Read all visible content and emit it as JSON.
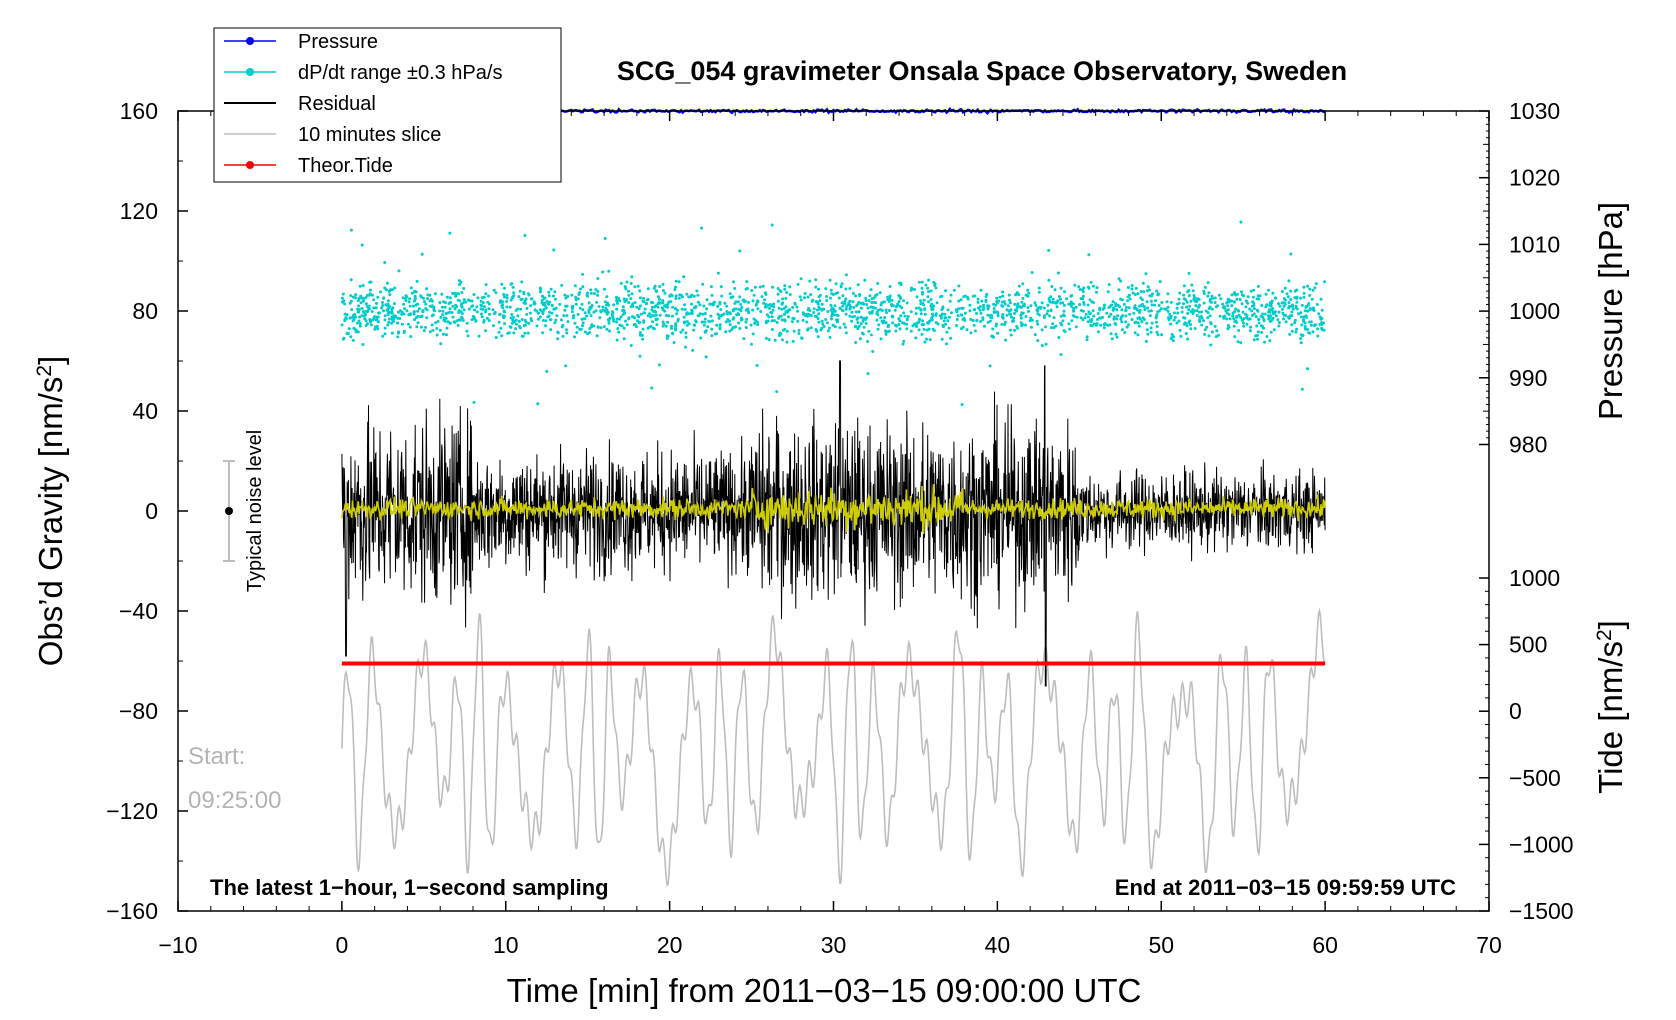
{
  "chart_data": {
    "type": "line",
    "title": "SCG_054 gravimeter Onsala Space Observatory, Sweden",
    "xlabel": "Time [min] from 2011−03−15 09:00:00 UTC",
    "ylabel_left": "Obs’d Gravity [nm/s²]",
    "ylabel_left_base": "Obs’d Gravity [nm/s",
    "ylabel_left_sup": "2",
    "ylabel_left_end": "]",
    "ylabel_right_pressure": "Pressure [hPa]",
    "ylabel_right_tide": "Tide [nm/s²]",
    "ylabel_right_tide_base": "Tide [nm/s",
    "ylabel_right_tide_sup": "2",
    "ylabel_right_tide_end": "]",
    "xlim": [
      -10,
      70
    ],
    "ylim": [
      -160,
      160
    ],
    "x_ticks": [
      "−10",
      "0",
      "10",
      "20",
      "30",
      "40",
      "50",
      "60",
      "70"
    ],
    "y_ticks": [
      "160",
      "120",
      "80",
      "40",
      "0",
      "−40",
      "−80",
      "−120",
      "−160"
    ],
    "pressure_ticks": [
      "1030",
      "1020",
      "1010",
      "1000",
      "990",
      "980"
    ],
    "pressure_range": [
      980,
      1030
    ],
    "tide_ticks": [
      "1000",
      "500",
      "0",
      "−500",
      "−1000",
      "−1500"
    ],
    "tide_range": [
      -1500,
      1000
    ],
    "series": [
      {
        "name": "Pressure",
        "color": "#0000ff",
        "style": "line",
        "x_range": [
          0,
          60
        ],
        "value_hPa": 1030
      },
      {
        "name": "dP/dt range ±0.3 hPa/s",
        "color": "#00cccc",
        "style": "dots",
        "x_range": [
          0,
          60
        ],
        "center_nm_s2": 80,
        "typical_spread": 10
      },
      {
        "name": "Residual",
        "color": "#000000",
        "style": "line",
        "x_range": [
          0,
          60
        ],
        "center_nm_s2": 0,
        "peak_max": 62,
        "peak_min": -70
      },
      {
        "name": "10 minutes slice",
        "color": "#bdbdbd",
        "style": "line",
        "x_range": [
          0,
          60
        ],
        "range_nm_s2": [
          -150,
          -40
        ]
      },
      {
        "name": "Theor.Tide",
        "color": "#ff0000",
        "style": "line",
        "x_range": [
          0,
          60
        ],
        "value_nm_s2": -61
      }
    ],
    "smoothed_residual_color": "#cccc00",
    "legend": [
      {
        "label": "Pressure",
        "color": "#0000ff",
        "marker": true
      },
      {
        "label": "dP/dt range ±0.3 hPa/s",
        "color": "#00cccc",
        "marker": true
      },
      {
        "label": "Residual",
        "color": "#000000",
        "marker": false
      },
      {
        "label": "10 minutes slice",
        "color": "#bdbdbd",
        "marker": false
      },
      {
        "label": "Theor.Tide",
        "color": "#ff0000",
        "marker": true
      }
    ],
    "legend_position": "top-left",
    "noise_level": {
      "label": "Typical noise level",
      "x": -7,
      "center": 0,
      "half_range": 20
    },
    "annotations": {
      "start_label": "Start:",
      "start_time": "09:25:00",
      "footer_left": "The latest 1−hour, 1−second sampling",
      "footer_right": "End at 2011−03−15 09:59:59 UTC"
    }
  }
}
